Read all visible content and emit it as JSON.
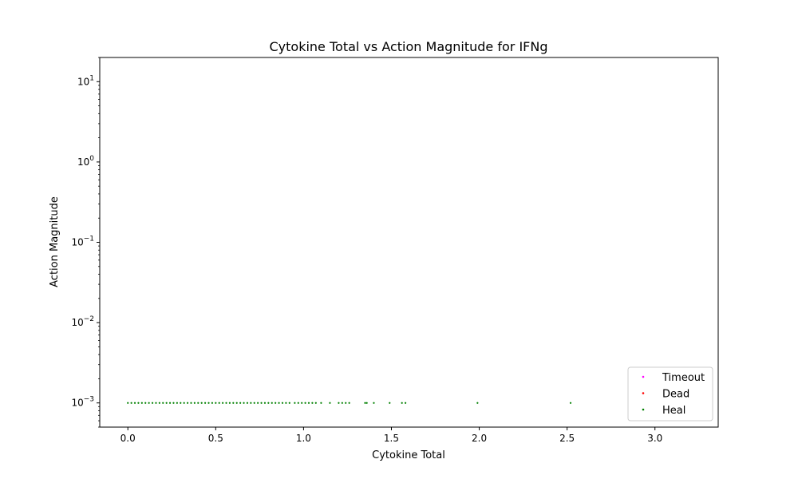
{
  "chart_data": {
    "type": "scatter",
    "title": "Cytokine Total vs Action Magnitude for IFNg",
    "xlabel": "Cytokine Total",
    "ylabel": "Action Magnitude",
    "xlim": [
      -0.16,
      3.36
    ],
    "ylim": [
      0.0005,
      20
    ],
    "yscale": "log",
    "xticks": [
      {
        "value": 0.0,
        "label": "0.0"
      },
      {
        "value": 0.5,
        "label": "0.5"
      },
      {
        "value": 1.0,
        "label": "1.0"
      },
      {
        "value": 1.5,
        "label": "1.5"
      },
      {
        "value": 2.0,
        "label": "2.0"
      },
      {
        "value": 2.5,
        "label": "2.5"
      },
      {
        "value": 3.0,
        "label": "3.0"
      }
    ],
    "yticks": [
      {
        "value": 0.001,
        "base": "10",
        "exp": "−3"
      },
      {
        "value": 0.01,
        "base": "10",
        "exp": "−2"
      },
      {
        "value": 0.1,
        "base": "10",
        "exp": "−1"
      },
      {
        "value": 1,
        "base": "10",
        "exp": "0"
      },
      {
        "value": 10,
        "base": "10",
        "exp": "1"
      }
    ],
    "legend_position": "bottom-right",
    "series": [
      {
        "name": "Timeout",
        "color": "#ff00ff",
        "x": [],
        "y": []
      },
      {
        "name": "Dead",
        "color": "#ff0000",
        "x": [],
        "y": []
      },
      {
        "name": "Heal",
        "color": "#008000",
        "x": [
          0.0,
          0.02,
          0.04,
          0.06,
          0.08,
          0.1,
          0.12,
          0.14,
          0.16,
          0.18,
          0.2,
          0.22,
          0.24,
          0.26,
          0.28,
          0.3,
          0.32,
          0.34,
          0.36,
          0.38,
          0.4,
          0.42,
          0.44,
          0.46,
          0.48,
          0.5,
          0.52,
          0.54,
          0.56,
          0.58,
          0.6,
          0.62,
          0.64,
          0.66,
          0.68,
          0.7,
          0.72,
          0.74,
          0.76,
          0.78,
          0.8,
          0.82,
          0.84,
          0.86,
          0.88,
          0.9,
          0.92,
          0.95,
          0.97,
          0.99,
          1.01,
          1.03,
          1.05,
          1.07,
          1.1,
          1.15,
          1.2,
          1.22,
          1.24,
          1.26,
          1.35,
          1.36,
          1.4,
          1.49,
          1.56,
          1.58,
          1.99,
          2.52
        ],
        "y": [
          0.001,
          0.001,
          0.001,
          0.001,
          0.001,
          0.001,
          0.001,
          0.001,
          0.001,
          0.001,
          0.001,
          0.001,
          0.001,
          0.001,
          0.001,
          0.001,
          0.001,
          0.001,
          0.001,
          0.001,
          0.001,
          0.001,
          0.001,
          0.001,
          0.001,
          0.001,
          0.001,
          0.001,
          0.001,
          0.001,
          0.001,
          0.001,
          0.001,
          0.001,
          0.001,
          0.001,
          0.001,
          0.001,
          0.001,
          0.001,
          0.001,
          0.001,
          0.001,
          0.001,
          0.001,
          0.001,
          0.001,
          0.001,
          0.001,
          0.001,
          0.001,
          0.001,
          0.001,
          0.001,
          0.001,
          0.001,
          0.001,
          0.001,
          0.001,
          0.001,
          0.001,
          0.001,
          0.001,
          0.001,
          0.001,
          0.001,
          0.001,
          0.001
        ]
      }
    ]
  }
}
